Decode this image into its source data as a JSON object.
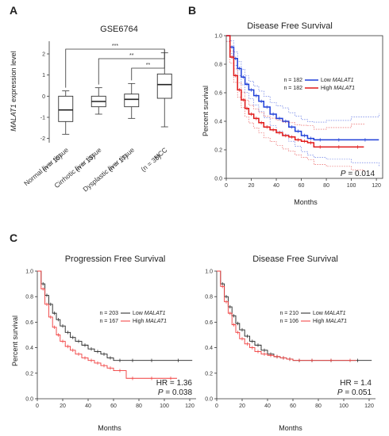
{
  "colors": {
    "low": "#1f3fd8",
    "high": "#e01818",
    "black": "#222222",
    "highC": "#f03a3a"
  },
  "panel_a": {
    "label": "A",
    "title": "GSE6764",
    "ylabel_italic": "MALAT1",
    "ylabel_rest": " expression level",
    "groups": [
      {
        "name": "Normal liver tissue",
        "n": "(n = 10)"
      },
      {
        "name": "Cirrhotic liver tissue",
        "n": "(n = 13)"
      },
      {
        "name": "Dysplastic liver tissue",
        "n": "(n = 17)"
      },
      {
        "name": "HCC",
        "n": "(n = 35)"
      }
    ],
    "sig": [
      "***",
      "**",
      "**"
    ]
  },
  "panel_b": {
    "label": "B",
    "title": "Disease Free Survival",
    "xlabel": "Months",
    "ylabel": "Percent survival",
    "legend": [
      {
        "n": "n = 182",
        "text": "Low ",
        "gene": "MALAT1"
      },
      {
        "n": "n = 182",
        "text": "High ",
        "gene": "MALAT1"
      }
    ],
    "p_label": "P",
    "p_value": " = 0.014"
  },
  "panel_c": {
    "label": "C",
    "left": {
      "title": "Progression Free Survival",
      "xlabel": "Months",
      "ylabel": "Percent survival",
      "legend": [
        {
          "n": "n = 203",
          "text": "Low ",
          "gene": "MALAT1"
        },
        {
          "n": "n = 167",
          "text": "High ",
          "gene": "MALAT1"
        }
      ],
      "hr": "HR = 1.36",
      "p_label": "P",
      "p_value": " = 0.038"
    },
    "right": {
      "title": "Disease Free Survival",
      "xlabel": "Months",
      "legend": [
        {
          "n": "n = 210",
          "text": "Low ",
          "gene": "MALAT1"
        },
        {
          "n": "n = 106",
          "text": "High ",
          "gene": "MALAT1"
        }
      ],
      "hr": "HR = 1.4",
      "p_label": "P",
      "p_value": " = 0.051"
    }
  },
  "chart_data": [
    {
      "type": "box",
      "title": "GSE6764",
      "ylabel": "MALAT1 expression level",
      "yticks": [
        -2,
        -1,
        0,
        1,
        2
      ],
      "ylim": [
        -2.2,
        2.6
      ],
      "categories": [
        "Normal liver tissue (n = 10)",
        "Cirrhotic liver tissue (n = 13)",
        "Dysplastic liver tissue (n = 17)",
        "HCC (n = 35)"
      ],
      "boxes": [
        {
          "min": -1.8,
          "q1": -1.2,
          "median": -0.65,
          "q3": 0.0,
          "max": 0.25
        },
        {
          "min": -0.85,
          "q1": -0.5,
          "median": -0.25,
          "q3": 0.0,
          "max": 0.4
        },
        {
          "min": -1.05,
          "q1": -0.5,
          "median": -0.15,
          "q3": 0.1,
          "max": 0.6
        },
        {
          "min": -1.45,
          "q1": -0.1,
          "median": 0.55,
          "q3": 1.05,
          "max": 2.05
        }
      ],
      "significance": [
        {
          "from": 0,
          "to": 3,
          "label": "***"
        },
        {
          "from": 1,
          "to": 3,
          "label": "**"
        },
        {
          "from": 2,
          "to": 3,
          "label": "**"
        }
      ]
    },
    {
      "type": "line",
      "title": "Disease Free Survival",
      "xlabel": "Months",
      "ylabel": "Percent survival",
      "xlim": [
        0,
        125
      ],
      "ylim": [
        0,
        1.0
      ],
      "xticks": [
        0,
        20,
        40,
        60,
        80,
        100,
        120
      ],
      "yticks": [
        0.0,
        0.2,
        0.4,
        0.6,
        0.8,
        1.0
      ],
      "series": [
        {
          "name": "Low MALAT1",
          "x": [
            0,
            3,
            6,
            9,
            12,
            15,
            18,
            22,
            26,
            30,
            35,
            40,
            45,
            50,
            55,
            60,
            65,
            70,
            80,
            100,
            122
          ],
          "y": [
            1.0,
            0.92,
            0.84,
            0.77,
            0.71,
            0.66,
            0.62,
            0.58,
            0.54,
            0.5,
            0.45,
            0.42,
            0.4,
            0.36,
            0.33,
            0.3,
            0.28,
            0.27,
            0.27,
            0.27,
            0.27
          ]
        },
        {
          "name": "High MALAT1",
          "x": [
            0,
            3,
            6,
            9,
            12,
            15,
            18,
            22,
            26,
            30,
            35,
            40,
            45,
            50,
            55,
            60,
            65,
            70,
            80,
            100,
            110
          ],
          "y": [
            1.0,
            0.85,
            0.72,
            0.62,
            0.55,
            0.49,
            0.45,
            0.42,
            0.39,
            0.36,
            0.34,
            0.32,
            0.3,
            0.29,
            0.27,
            0.26,
            0.25,
            0.22,
            0.22,
            0.22,
            0.22
          ]
        }
      ]
    },
    {
      "type": "line",
      "title": "Progression Free Survival",
      "xlabel": "Months",
      "ylabel": "Percent survival",
      "xlim": [
        0,
        125
      ],
      "ylim": [
        0,
        1.0
      ],
      "xticks": [
        0,
        20,
        40,
        60,
        80,
        100,
        120
      ],
      "yticks": [
        0.0,
        0.2,
        0.4,
        0.6,
        0.8,
        1.0
      ],
      "series": [
        {
          "name": "Low MALAT1",
          "x": [
            0,
            3,
            6,
            9,
            12,
            15,
            18,
            22,
            26,
            30,
            35,
            40,
            45,
            50,
            55,
            60,
            70,
            80,
            100,
            122
          ],
          "y": [
            1.0,
            0.9,
            0.81,
            0.74,
            0.67,
            0.62,
            0.57,
            0.52,
            0.48,
            0.45,
            0.42,
            0.39,
            0.37,
            0.35,
            0.32,
            0.3,
            0.3,
            0.3,
            0.3,
            0.3
          ]
        },
        {
          "name": "High MALAT1",
          "x": [
            0,
            3,
            6,
            9,
            12,
            15,
            18,
            22,
            26,
            30,
            35,
            40,
            45,
            50,
            55,
            60,
            70,
            80,
            100,
            110
          ],
          "y": [
            1.0,
            0.86,
            0.74,
            0.64,
            0.56,
            0.5,
            0.45,
            0.41,
            0.38,
            0.35,
            0.32,
            0.3,
            0.28,
            0.26,
            0.24,
            0.22,
            0.16,
            0.16,
            0.16,
            0.16
          ]
        }
      ]
    },
    {
      "type": "line",
      "title": "Disease Free Survival",
      "xlabel": "Months",
      "xlim": [
        0,
        125
      ],
      "ylim": [
        0,
        1.0
      ],
      "xticks": [
        0,
        20,
        40,
        60,
        80,
        100,
        120
      ],
      "yticks": [
        0.0,
        0.2,
        0.4,
        0.6,
        0.8,
        1.0
      ],
      "series": [
        {
          "name": "Low MALAT1",
          "x": [
            0,
            3,
            6,
            9,
            12,
            15,
            18,
            22,
            26,
            30,
            35,
            40,
            45,
            50,
            55,
            60,
            70,
            80,
            100,
            122
          ],
          "y": [
            1.0,
            0.9,
            0.8,
            0.72,
            0.65,
            0.59,
            0.54,
            0.49,
            0.45,
            0.42,
            0.38,
            0.35,
            0.33,
            0.32,
            0.31,
            0.3,
            0.3,
            0.3,
            0.3,
            0.3
          ]
        },
        {
          "name": "High MALAT1",
          "x": [
            0,
            3,
            6,
            9,
            12,
            15,
            18,
            22,
            26,
            30,
            35,
            40,
            45,
            50,
            55,
            60,
            70,
            80,
            100,
            110
          ],
          "y": [
            1.0,
            0.88,
            0.76,
            0.67,
            0.58,
            0.52,
            0.47,
            0.43,
            0.4,
            0.37,
            0.35,
            0.34,
            0.33,
            0.32,
            0.31,
            0.3,
            0.3,
            0.3,
            0.3,
            0.3
          ]
        }
      ]
    }
  ]
}
